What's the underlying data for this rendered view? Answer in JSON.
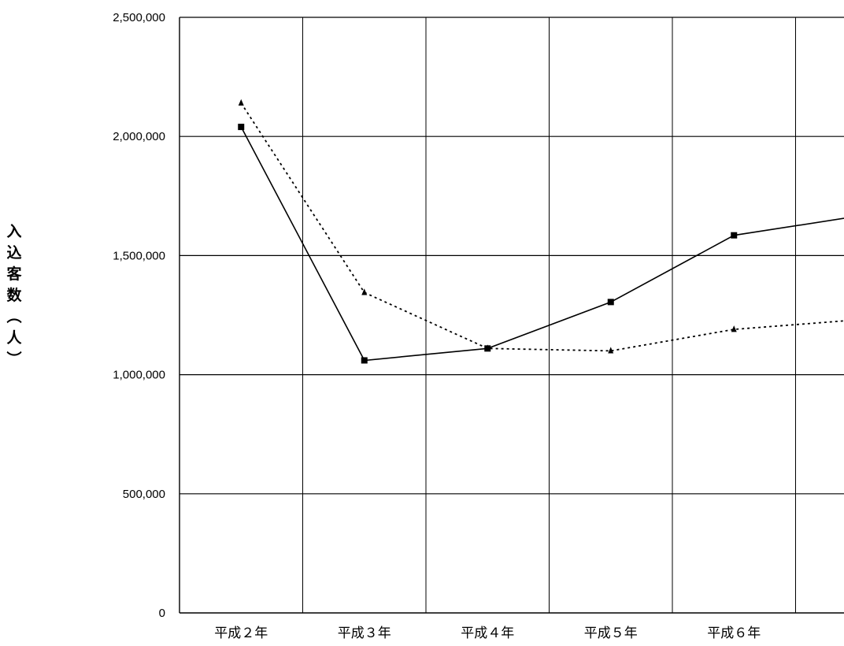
{
  "chart_data": {
    "type": "line",
    "title": "",
    "xlabel": "",
    "ylabel": "入込客数（人）",
    "categories": [
      "平成２年",
      "平成３年",
      "平成４年",
      "平成５年",
      "平成６年"
    ],
    "y_ticks": [
      "0",
      "500,000",
      "1,000,000",
      "1,500,000",
      "2,000,000",
      "2,500,000"
    ],
    "ylim": [
      0,
      2500000
    ],
    "grid": true,
    "series": [
      {
        "line_style": "solid",
        "marker": "square",
        "color": "#000000",
        "values": [
          2040000,
          1060000,
          1110000,
          1305000,
          1585000
        ],
        "continues_to_beyond_edge": 1665000
      },
      {
        "line_style": "dotted",
        "marker": "triangle",
        "color": "#000000",
        "values": [
          2140000,
          1345000,
          1110000,
          1100000,
          1190000
        ],
        "continues_to_beyond_edge": 1230000
      }
    ]
  }
}
